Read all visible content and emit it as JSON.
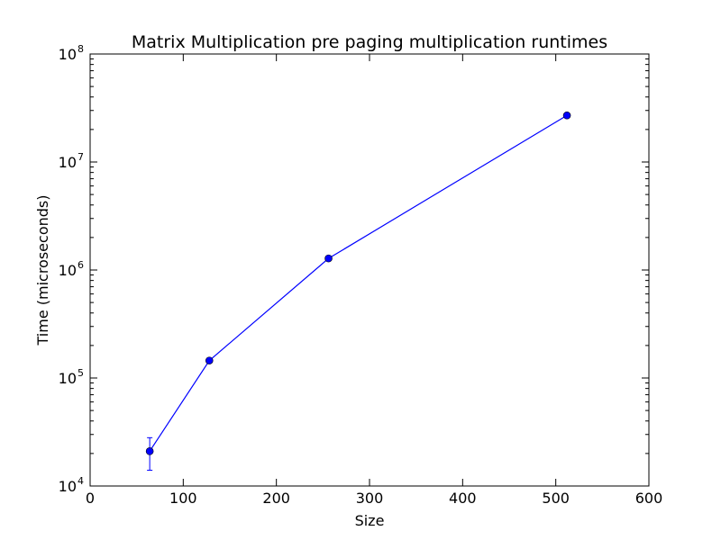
{
  "chart_data": {
    "type": "line",
    "title": "Matrix Multiplication pre paging multiplication runtimes",
    "xlabel": "Size",
    "ylabel": "Time (microseconds)",
    "xlim": [
      0,
      600
    ],
    "ylim": [
      10000,
      100000000
    ],
    "yscale": "log",
    "grid": false,
    "x_ticks": [
      {
        "value": 0,
        "label": "0"
      },
      {
        "value": 100,
        "label": "100"
      },
      {
        "value": 200,
        "label": "200"
      },
      {
        "value": 300,
        "label": "300"
      },
      {
        "value": 400,
        "label": "400"
      },
      {
        "value": 500,
        "label": "500"
      },
      {
        "value": 600,
        "label": "600"
      }
    ],
    "y_ticks": [
      {
        "value": 10000,
        "base": "10",
        "exp": "4"
      },
      {
        "value": 100000,
        "base": "10",
        "exp": "5"
      },
      {
        "value": 1000000,
        "base": "10",
        "exp": "6"
      },
      {
        "value": 10000000,
        "base": "10",
        "exp": "7"
      },
      {
        "value": 100000000,
        "base": "10",
        "exp": "8"
      }
    ],
    "series": [
      {
        "color": "#0000ff",
        "marker": "circle",
        "points": [
          {
            "x": 64,
            "y": 21000,
            "err_low": 14000,
            "err_high": 28000
          },
          {
            "x": 128,
            "y": 145000
          },
          {
            "x": 256,
            "y": 1280000
          },
          {
            "x": 512,
            "y": 27000000
          }
        ]
      }
    ]
  }
}
